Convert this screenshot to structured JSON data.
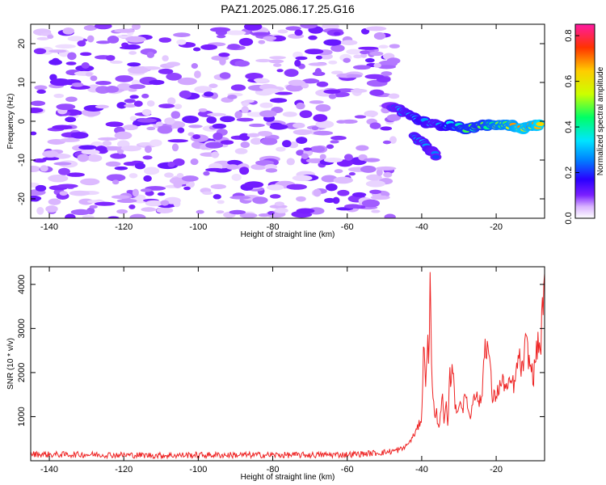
{
  "title": "PAZ1.2025.086.17.25.G16",
  "chart_data": [
    {
      "type": "heatmap",
      "xlabel": "Height of straight line (km)",
      "ylabel": "Frequency (Hz)",
      "xlim": [
        -145,
        -7
      ],
      "ylim": [
        -25,
        25
      ],
      "xticks": [
        -140,
        -120,
        -100,
        -80,
        -60,
        -40,
        -20
      ],
      "yticks": [
        -20,
        -10,
        0,
        10,
        20
      ],
      "colorbar": {
        "label": "Normalized spectral amplitude",
        "range": [
          0.0,
          0.85
        ],
        "ticks": [
          0.0,
          0.2,
          0.4,
          0.6,
          0.8
        ],
        "colormap": [
          "#ffffff",
          "#d9b3ff",
          "#7a1fff",
          "#2a00ff",
          "#0080ff",
          "#00e5ff",
          "#00ff66",
          "#ccff00",
          "#ffcc00",
          "#ff3300",
          "#ff1aa3"
        ]
      },
      "noise_region_km": [
        -145,
        -47
      ],
      "noise_amplitude_range": [
        0.0,
        0.12
      ],
      "signal_ridge": [
        {
          "x": -48,
          "y": 4,
          "amp": 0.25
        },
        {
          "x": -44,
          "y": 2,
          "amp": 0.3
        },
        {
          "x": -40,
          "y": 0,
          "amp": 0.35
        },
        {
          "x": -36,
          "y": -1,
          "amp": 0.3
        },
        {
          "x": -32,
          "y": -1,
          "amp": 0.4
        },
        {
          "x": -28,
          "y": -2,
          "amp": 0.45
        },
        {
          "x": -24,
          "y": -1,
          "amp": 0.45
        },
        {
          "x": -20,
          "y": -1,
          "amp": 0.55
        },
        {
          "x": -16,
          "y": -1,
          "amp": 0.6
        },
        {
          "x": -13,
          "y": -2,
          "amp": 0.7
        },
        {
          "x": -10,
          "y": -1,
          "amp": 0.65
        },
        {
          "x": -8,
          "y": -1,
          "amp": 0.75
        }
      ],
      "signal_lower_branch": [
        {
          "x": -42,
          "y": -4,
          "amp": 0.3
        },
        {
          "x": -38,
          "y": -7,
          "amp": 0.3
        },
        {
          "x": -36,
          "y": -9,
          "amp": 0.25
        }
      ]
    },
    {
      "type": "line",
      "xlabel": "Height of straight line (km)",
      "ylabel": "SNR (10 * v/v)",
      "xlim": [
        -145,
        -7
      ],
      "ylim": [
        0,
        4400
      ],
      "xticks": [
        -140,
        -120,
        -100,
        -80,
        -60,
        -40,
        -20
      ],
      "yticks": [
        1000,
        2000,
        3000,
        4000
      ],
      "series": [
        {
          "color": "#ee2222",
          "x": [
            -145,
            -140,
            -130,
            -120,
            -110,
            -100,
            -90,
            -80,
            -70,
            -60,
            -55,
            -50,
            -47,
            -45,
            -43,
            -42,
            -41,
            -40,
            -39.5,
            -39,
            -38.5,
            -38,
            -37.7,
            -37.3,
            -37,
            -36.5,
            -36,
            -35.5,
            -35,
            -34.5,
            -34,
            -33.5,
            -33,
            -32.5,
            -32,
            -31.5,
            -31,
            -30.5,
            -30,
            -29,
            -28,
            -27,
            -26,
            -25,
            -24,
            -23,
            -22,
            -21,
            -20,
            -19.5,
            -19,
            -18,
            -17,
            -16,
            -15,
            -14,
            -13,
            -12,
            -11,
            -10,
            -9,
            -8,
            -7.5,
            -7
          ],
          "values": [
            150,
            140,
            140,
            130,
            120,
            130,
            130,
            130,
            130,
            140,
            160,
            190,
            230,
            270,
            450,
            600,
            750,
            1000,
            2600,
            1800,
            2700,
            2300,
            4300,
            2000,
            1600,
            900,
            1100,
            700,
            1100,
            1500,
            800,
            1300,
            700,
            1900,
            1900,
            2250,
            1200,
            1000,
            1400,
            1200,
            1500,
            900,
            1600,
            1400,
            1300,
            2700,
            2500,
            1400,
            1500,
            1600,
            1700,
            1800,
            1600,
            1800,
            1700,
            2400,
            2000,
            2700,
            2200,
            1900,
            2600,
            2600,
            3700,
            3800
          ]
        }
      ]
    }
  ]
}
